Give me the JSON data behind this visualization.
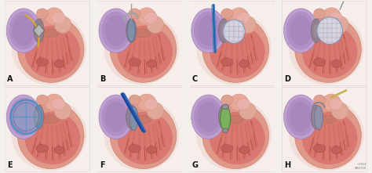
{
  "fig_width": 4.74,
  "fig_height": 2.21,
  "dpi": 100,
  "labels": [
    "A",
    "B",
    "C",
    "D",
    "E",
    "F",
    "G",
    "H"
  ],
  "bg_color": "#f5f0ee",
  "panel_bg": "#f8f0ec",
  "heart_outer": "#e8a898",
  "heart_body": "#e0908a",
  "heart_dark": "#c87060",
  "heart_vent": "#cc6058",
  "la_color": "#b090c8",
  "la_edge": "#9070b0",
  "aorta_color": "#e8b0b0",
  "septum_dark": "#707898",
  "watermark": "©2014\nMEDTOS",
  "label_fontsize": 7,
  "label_color": "#111111"
}
